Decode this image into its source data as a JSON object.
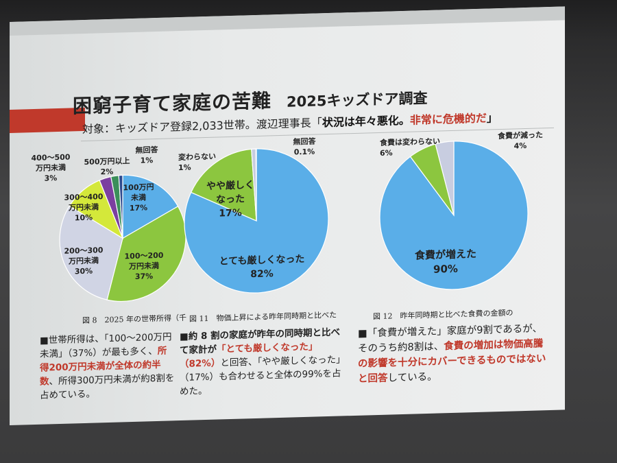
{
  "header": {
    "title": "困窮子育て家庭の苦難",
    "year_title": "2025キッズドア調査",
    "subtitle_prefix": "対象：キッズドア登録2,033世帯。渡辺理事長「",
    "subtitle_quote": "状況は年々悪化。",
    "subtitle_red": "非常に危機的だ",
    "subtitle_suffix": "」"
  },
  "captions": {
    "fig8": "図 8　2025 年の世帯所得（千",
    "fig11": "図 11　物価上昇による昨年同時期と比べた",
    "fig12": "図 12　昨年同時期と比べた食費の金額の"
  },
  "paragraphs": {
    "p1_a": "■世帯所得は、「100〜200万円未満」（37%）が最も多く、",
    "p1_red": "所得200万円未満が全体の約半数",
    "p1_b": "、所得300万円未満が約8割を占めている。",
    "p2_a": "■約 8 割の家庭が昨年の同時期と比べて家計が",
    "p2_red": "「とても厳しくなった」（82%）",
    "p2_b": "と回答、「やや厳しくなった」（17%）も合わせると全体の99%を占めた。",
    "p3_a": "■「食費が増えた」家庭が9割であるが、そのうち約8割は、",
    "p3_red": "食費の増加は物価高騰の影響を十分にカバーできるものではないと回答",
    "p3_b": "している。"
  },
  "chart_data": [
    {
      "type": "pie",
      "title": "2025 年の世帯所得",
      "categories": [
        "100万円未満",
        "100〜200万円未満",
        "200〜300万円未満",
        "300〜400万円未満",
        "400〜500万円未満",
        "500万円以上",
        "無回答"
      ],
      "values": [
        17,
        37,
        30,
        10,
        3,
        2,
        1
      ],
      "labels": [
        "100万円\n未満\n17%",
        "100〜200\n万円未満\n37%",
        "200〜300\n万円未満\n30%",
        "300〜400\n万円未満\n10%",
        "400〜500\n万円未満\n3%",
        "500万円以上\n2%",
        "無回答\n1%"
      ],
      "colors": [
        "#5aaee8",
        "#8cc63f",
        "#d0d4e4",
        "#d4e83a",
        "#7b3fa0",
        "#3b8f5a",
        "#2e4b8f"
      ]
    },
    {
      "type": "pie",
      "title": "物価上昇による昨年同時期と比べた家計",
      "categories": [
        "とても厳しくなった",
        "やや厳しくなった",
        "変わらない",
        "無回答"
      ],
      "values": [
        82,
        17,
        1,
        0.1
      ],
      "labels": [
        "とても厳しくなった\n82%",
        "やや厳しく\nなった\n17%",
        "変わらない\n1%",
        "無回答\n0.1%"
      ],
      "colors": [
        "#5aaee8",
        "#8cc63f",
        "#c8cde0",
        "#9aa3c0"
      ]
    },
    {
      "type": "pie",
      "title": "昨年同時期と比べた食費の金額",
      "categories": [
        "食費が増えた",
        "食費は変わらない",
        "食費が減った"
      ],
      "values": [
        90,
        6,
        4
      ],
      "labels": [
        "食費が増えた\n90%",
        "食費は変わらない\n6%",
        "食費が減った\n4%"
      ],
      "colors": [
        "#5aaee8",
        "#8cc63f",
        "#c8cde0"
      ]
    }
  ]
}
